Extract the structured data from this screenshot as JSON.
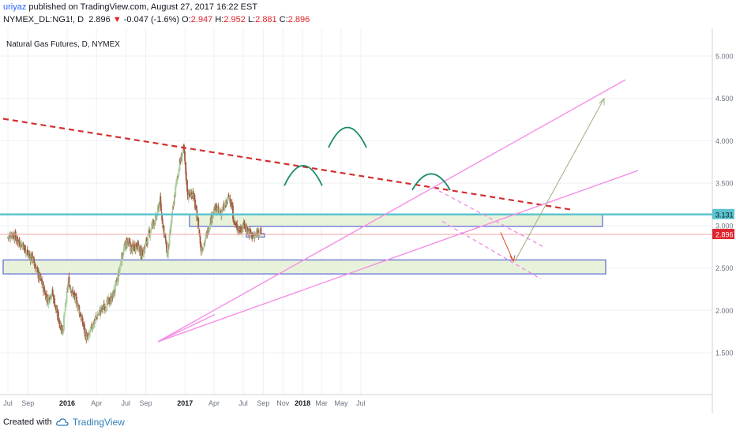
{
  "header": {
    "publisher": "uriyaz",
    "published_text": "published on TradingView.com, August 27, 2017 16:22 EST",
    "symbol": "NYMEX_DL:NG1!, D",
    "last": "2.896",
    "change": "-0.047 (-1.6%)",
    "open_label": "O:",
    "open": "2.947",
    "high_label": "H:",
    "high": "2.952",
    "low_label": "L:",
    "low": "2.881",
    "close_label": "C:",
    "close": "2.896"
  },
  "footer": {
    "created_with": "Created with",
    "brand": "TradingView"
  },
  "chart_data": {
    "type": "line",
    "title": "Natural Gas Futures, D, NYMEX",
    "ylim": [
      1.05,
      5.3
    ],
    "y_ticks": [
      "1.500",
      "2.000",
      "2.500",
      "3.000",
      "3.500",
      "4.000",
      "4.500",
      "5.000"
    ],
    "x_ticks": [
      "Jul",
      "Sep",
      "2016",
      "Apr",
      "Jul",
      "Sep",
      "2017",
      "Apr",
      "Jul",
      "Sep",
      "Nov",
      "2018",
      "Mar",
      "May",
      "Jul"
    ],
    "last_price_label": "2.896",
    "level_label": "3.131",
    "colors": {
      "up_candle": "#a9cc9c",
      "down_candle": "#a3563e",
      "resistance_dashed": "#d32f2f",
      "trendlines": "#f48fe6",
      "horizontal_level": "#5bc4cf",
      "zones_fill": "#e8f2da",
      "zones_border": "#3b4bd1",
      "head_shoulders_arcs": "#1a8a6a",
      "projection_up": "#96b07a",
      "projection_down": "#e0452a"
    },
    "series": [
      {
        "values": [
          [
            "2015-07-01",
            2.86
          ],
          [
            "2015-07-15",
            2.91
          ],
          [
            "2015-08-01",
            2.82
          ],
          [
            "2015-08-15",
            2.78
          ],
          [
            "2015-09-01",
            2.66
          ],
          [
            "2015-09-15",
            2.62
          ],
          [
            "2015-10-01",
            2.44
          ],
          [
            "2015-10-15",
            2.32
          ],
          [
            "2015-11-01",
            2.12
          ],
          [
            "2015-11-15",
            2.22
          ],
          [
            "2015-12-01",
            1.95
          ],
          [
            "2015-12-18",
            1.75
          ],
          [
            "2016-01-05",
            2.35
          ],
          [
            "2016-01-20",
            2.18
          ],
          [
            "2016-02-05",
            2.05
          ],
          [
            "2016-02-20",
            1.82
          ],
          [
            "2016-03-04",
            1.64
          ],
          [
            "2016-03-20",
            1.82
          ],
          [
            "2016-04-05",
            1.95
          ],
          [
            "2016-04-20",
            2.02
          ],
          [
            "2016-05-05",
            2.08
          ],
          [
            "2016-05-20",
            2.15
          ],
          [
            "2016-06-05",
            2.35
          ],
          [
            "2016-06-20",
            2.65
          ],
          [
            "2016-07-05",
            2.82
          ],
          [
            "2016-07-20",
            2.72
          ],
          [
            "2016-08-05",
            2.78
          ],
          [
            "2016-08-20",
            2.65
          ],
          [
            "2016-09-05",
            2.82
          ],
          [
            "2016-09-20",
            3.0
          ],
          [
            "2016-10-05",
            3.1
          ],
          [
            "2016-10-15",
            3.3
          ],
          [
            "2016-10-25",
            3.0
          ],
          [
            "2016-11-08",
            2.65
          ],
          [
            "2016-11-20",
            3.05
          ],
          [
            "2016-12-05",
            3.5
          ],
          [
            "2016-12-15",
            3.72
          ],
          [
            "2016-12-28",
            3.9
          ],
          [
            "2017-01-10",
            3.35
          ],
          [
            "2017-01-25",
            3.4
          ],
          [
            "2017-02-10",
            3.05
          ],
          [
            "2017-02-20",
            2.72
          ],
          [
            "2017-03-05",
            2.82
          ],
          [
            "2017-03-20",
            3.05
          ],
          [
            "2017-04-05",
            3.2
          ],
          [
            "2017-04-20",
            3.15
          ],
          [
            "2017-05-05",
            3.22
          ],
          [
            "2017-05-20",
            3.35
          ],
          [
            "2017-06-05",
            3.0
          ],
          [
            "2017-06-20",
            2.95
          ],
          [
            "2017-07-05",
            3.0
          ],
          [
            "2017-07-20",
            2.92
          ],
          [
            "2017-08-05",
            2.85
          ],
          [
            "2017-08-15",
            2.95
          ],
          [
            "2017-08-25",
            2.896
          ]
        ]
      }
    ]
  }
}
